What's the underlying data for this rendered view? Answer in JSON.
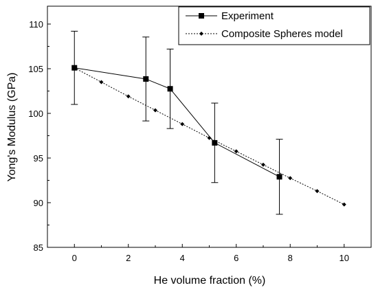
{
  "chart_data": {
    "type": "line",
    "xlabel": "He volume fraction (%)",
    "ylabel": "Yong's Modulus (GPa)",
    "xlim": [
      -1,
      11
    ],
    "ylim": [
      85,
      112
    ],
    "x_ticks": [
      0,
      2,
      4,
      6,
      8,
      10
    ],
    "y_ticks": [
      85,
      90,
      95,
      100,
      105,
      110
    ],
    "grid": false,
    "legend_position": "top-right",
    "series": [
      {
        "name": "Experiment",
        "style": "solid",
        "marker": "square",
        "color": "#000000",
        "x": [
          0,
          2.65,
          3.55,
          5.2,
          7.6
        ],
        "y": [
          105.1,
          103.85,
          102.75,
          96.7,
          92.9
        ],
        "error": [
          4.1,
          4.7,
          4.45,
          4.45,
          4.2
        ]
      },
      {
        "name": "Composite Spheres model",
        "style": "dotted",
        "marker": "diamond",
        "color": "#000000",
        "x": [
          0,
          1,
          2,
          3,
          4,
          5,
          6,
          7,
          8,
          9,
          10
        ],
        "y": [
          105.1,
          103.5,
          101.9,
          100.35,
          98.8,
          97.25,
          95.75,
          94.25,
          92.75,
          91.3,
          89.8
        ]
      }
    ]
  }
}
